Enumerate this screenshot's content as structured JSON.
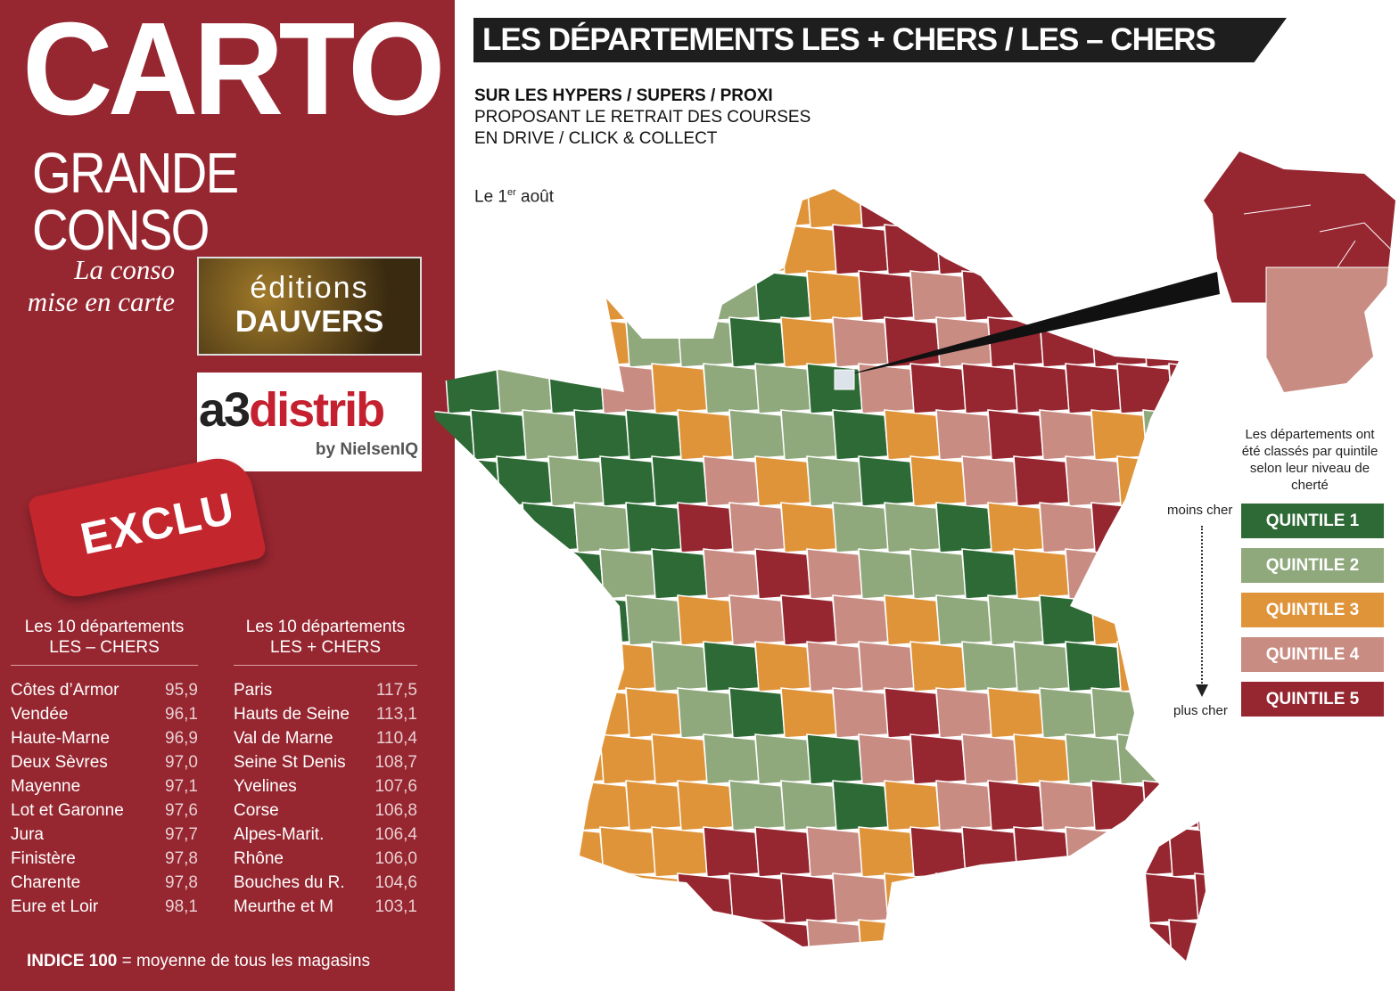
{
  "header": {
    "brand_line1": "CARTO",
    "brand_line2": "GRANDE CONSO",
    "tagline_1": "La conso",
    "tagline_2": "mise en carte",
    "logo_dauvers_1": "éditions",
    "logo_dauvers_2": "DAUVERS",
    "logo_a3_1": "a3",
    "logo_a3_2": "distrib",
    "logo_a3_3": "by NielsenIQ",
    "badge": "EXCLU"
  },
  "title": "LES DÉPARTEMENTS LES + CHERS / LES – CHERS",
  "subtitle": {
    "line1": "SUR LES HYPERS / SUPERS / PROXI",
    "line2": "PROPOSANT LE RETRAIT DES COURSES",
    "line3": "EN DRIVE / CLICK & COLLECT"
  },
  "date": {
    "prefix": "Le 1",
    "sup": "er",
    "suffix": " août"
  },
  "least_expensive": {
    "heading_1": "Les 10 départements",
    "heading_2": "LES – CHERS",
    "rows": [
      {
        "name": "Côtes d’Armor",
        "value": "95,9"
      },
      {
        "name": "Vendée",
        "value": "96,1"
      },
      {
        "name": "Haute-Marne",
        "value": "96,9"
      },
      {
        "name": "Deux Sèvres",
        "value": "97,0"
      },
      {
        "name": "Mayenne",
        "value": "97,1"
      },
      {
        "name": "Lot et Garonne",
        "value": "97,6"
      },
      {
        "name": "Jura",
        "value": "97,7"
      },
      {
        "name": "Finistère",
        "value": "97,8"
      },
      {
        "name": "Charente",
        "value": "97,8"
      },
      {
        "name": "Eure et Loir",
        "value": "98,1"
      }
    ]
  },
  "most_expensive": {
    "heading_1": "Les 10 départements",
    "heading_2": "LES + CHERS",
    "rows": [
      {
        "name": "Paris",
        "value": "117,5"
      },
      {
        "name": "Hauts de Seine",
        "value": "113,1"
      },
      {
        "name": "Val de Marne",
        "value": "110,4"
      },
      {
        "name": "Seine St Denis",
        "value": "108,7"
      },
      {
        "name": "Yvelines",
        "value": "107,6"
      },
      {
        "name": "Corse",
        "value": "106,8"
      },
      {
        "name": "Alpes-Marit.",
        "value": "106,4"
      },
      {
        "name": "Rhône",
        "value": "106,0"
      },
      {
        "name": "Bouches du R.",
        "value": "104,6"
      },
      {
        "name": "Meurthe et M",
        "value": "103,1"
      }
    ]
  },
  "footnote": {
    "bold": "INDICE 100",
    "rest": " = moyenne de tous les magasins"
  },
  "legend": {
    "note": "Les départements ont été classés par quintile selon leur niveau de cherté",
    "top_label": "moins cher",
    "bottom_label": "plus cher",
    "items": [
      {
        "label": "QUINTILE 1",
        "color": "#2d6a35"
      },
      {
        "label": "QUINTILE 2",
        "color": "#8fa87c"
      },
      {
        "label": "QUINTILE 3",
        "color": "#e0943a"
      },
      {
        "label": "QUINTILE 4",
        "color": "#c98c82"
      },
      {
        "label": "QUINTILE 5",
        "color": "#962630"
      }
    ]
  }
}
